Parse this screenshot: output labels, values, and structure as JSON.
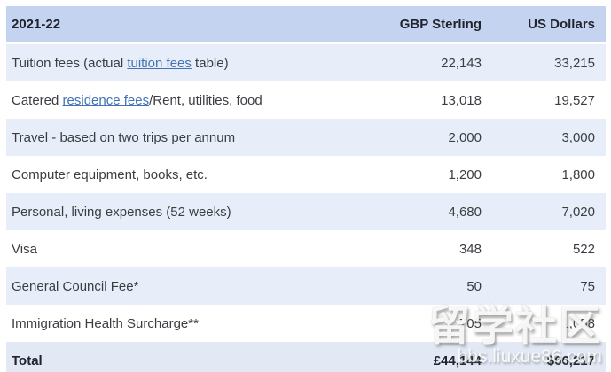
{
  "table": {
    "headers": {
      "year": "2021-22",
      "gbp": "GBP Sterling",
      "usd": "US Dollars"
    },
    "rows": [
      {
        "name": "tuition-fees",
        "prefix": "Tuition fees (actual ",
        "link": "tuition fees",
        "suffix": " table)",
        "gbp": "22,143",
        "usd": "33,215",
        "stripe": true
      },
      {
        "name": "catered-residence",
        "prefix": "Catered ",
        "link": "residence fees",
        "suffix": "/Rent, utilities, food",
        "gbp": "13,018",
        "usd": "19,527",
        "stripe": false
      },
      {
        "name": "travel",
        "label": "Travel - based on two trips per annum",
        "gbp": "2,000",
        "usd": "3,000",
        "stripe": true
      },
      {
        "name": "computer-equipment",
        "label": "Computer equipment, books, etc.",
        "gbp": "1,200",
        "usd": "1,800",
        "stripe": false
      },
      {
        "name": "personal-living",
        "label": "Personal, living expenses (52 weeks)",
        "gbp": "4,680",
        "usd": "7,020",
        "stripe": true
      },
      {
        "name": "visa",
        "label": "Visa",
        "gbp": "348",
        "usd": "522",
        "stripe": false
      },
      {
        "name": "general-council-fee",
        "label": "General Council Fee*",
        "gbp": "50",
        "usd": "75",
        "stripe": true
      },
      {
        "name": "immigration-health-surcharge",
        "label": "Immigration Health Surcharge**",
        "gbp": "705",
        "usd": "1,058",
        "stripe": false
      }
    ],
    "total": {
      "label": "Total",
      "gbp": "£44,144",
      "usd": "$66,217"
    }
  },
  "watermark": {
    "text": "留学社区",
    "url": "bbs.liuxue86.com"
  },
  "colors": {
    "header_bg": "#c4d4f0",
    "stripe_bg": "#e8eef9",
    "total_bg": "#e2e9f5",
    "link": "#4273b4",
    "text": "#3a3d42"
  }
}
